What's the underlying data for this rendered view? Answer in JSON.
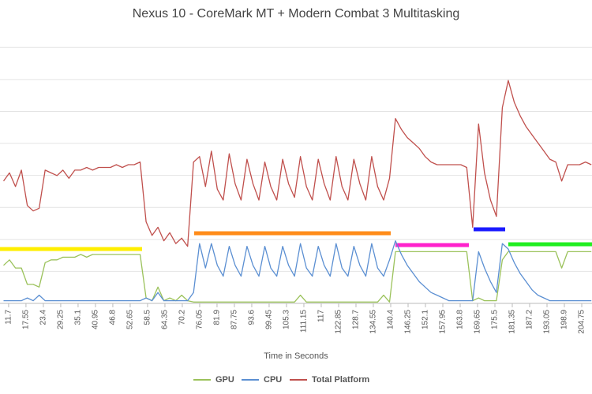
{
  "chart_data": {
    "type": "line",
    "title": "Nexus 10 - CoreMark MT + Modern Combat 3 Multitasking",
    "x_label": "Time in Seconds",
    "x": [
      10,
      12,
      14,
      16,
      18,
      20,
      22,
      24,
      26,
      28,
      30,
      32,
      34,
      36,
      38,
      40,
      42,
      44,
      46,
      48,
      50,
      52,
      54,
      56,
      58,
      60,
      62,
      64,
      66,
      68,
      70,
      72,
      74,
      76,
      78,
      80,
      82,
      84,
      86,
      88,
      90,
      92,
      94,
      96,
      98,
      100,
      102,
      104,
      106,
      108,
      110,
      112,
      114,
      116,
      118,
      120,
      122,
      124,
      126,
      128,
      130,
      132,
      134,
      136,
      138,
      140,
      142,
      144,
      146,
      148,
      150,
      152,
      154,
      156,
      158,
      160,
      162,
      164,
      166,
      168,
      170,
      172,
      174,
      176,
      178,
      180,
      182,
      184,
      186,
      188,
      190,
      192,
      194,
      196,
      198,
      200,
      202,
      204,
      206,
      208
    ],
    "xlim": [
      8.8,
      208.2
    ],
    "xticks": [
      11.7,
      17.55,
      23.4,
      29.25,
      35.1,
      40.95,
      46.8,
      52.65,
      58.5,
      64.35,
      70.2,
      76.05,
      81.9,
      87.75,
      93.6,
      99.45,
      105.3,
      111.15,
      117,
      122.85,
      128.7,
      134.55,
      140.4,
      146.25,
      152.1,
      157.95,
      163.8,
      169.65,
      175.5,
      181.35,
      187.2,
      193.05,
      198.9,
      204.75
    ],
    "ylim": [
      0,
      10
    ],
    "grid": true,
    "series": [
      {
        "name": "GPU",
        "color": "#9bc25b",
        "values": [
          1.4,
          1.6,
          1.3,
          1.3,
          0.7,
          0.7,
          0.6,
          1.5,
          1.6,
          1.6,
          1.7,
          1.7,
          1.7,
          1.8,
          1.7,
          1.8,
          1.8,
          1.8,
          1.8,
          1.8,
          1.8,
          1.8,
          1.8,
          1.8,
          0.2,
          0.1,
          0.6,
          0.1,
          0.2,
          0.1,
          0.3,
          0.1,
          0.05,
          0.05,
          0.05,
          0.05,
          0.05,
          0.05,
          0.05,
          0.05,
          0.05,
          0.05,
          0.05,
          0.05,
          0.05,
          0.05,
          0.05,
          0.05,
          0.05,
          0.05,
          0.3,
          0.05,
          0.05,
          0.05,
          0.05,
          0.05,
          0.05,
          0.05,
          0.05,
          0.05,
          0.05,
          0.05,
          0.05,
          0.05,
          0.3,
          0.05,
          1.9,
          1.9,
          1.9,
          1.9,
          1.9,
          1.9,
          1.9,
          1.9,
          1.9,
          1.9,
          1.9,
          1.9,
          1.9,
          0.1,
          0.2,
          0.1,
          0.1,
          0.1,
          1.6,
          1.9,
          1.9,
          1.9,
          1.9,
          1.9,
          1.9,
          1.9,
          1.9,
          1.9,
          1.3,
          1.9,
          1.9,
          1.9,
          1.9,
          1.9
        ]
      },
      {
        "name": "CPU",
        "color": "#5b8fd2",
        "values": [
          0.1,
          0.1,
          0.1,
          0.1,
          0.2,
          0.1,
          0.3,
          0.1,
          0.1,
          0.1,
          0.1,
          0.1,
          0.1,
          0.1,
          0.1,
          0.1,
          0.1,
          0.1,
          0.1,
          0.1,
          0.1,
          0.1,
          0.1,
          0.1,
          0.2,
          0.1,
          0.4,
          0.1,
          0.1,
          0.1,
          0.1,
          0.1,
          0.4,
          2.2,
          1.3,
          2.2,
          1.4,
          1.0,
          2.1,
          1.4,
          1.0,
          2.1,
          1.4,
          1.0,
          2.1,
          1.3,
          1.0,
          2.1,
          1.4,
          1.0,
          2.2,
          1.3,
          1.0,
          2.1,
          1.4,
          1.0,
          2.2,
          1.3,
          1.0,
          2.1,
          1.4,
          1.0,
          2.2,
          1.3,
          1.0,
          1.6,
          2.3,
          1.8,
          1.4,
          1.1,
          0.8,
          0.6,
          0.4,
          0.3,
          0.2,
          0.1,
          0.1,
          0.1,
          0.1,
          0.1,
          1.9,
          1.3,
          0.8,
          0.4,
          2.2,
          2.0,
          1.5,
          1.1,
          0.8,
          0.5,
          0.3,
          0.2,
          0.1,
          0.1,
          0.1,
          0.1,
          0.1,
          0.1,
          0.1,
          0.1
        ]
      },
      {
        "name": "Total Platform",
        "color": "#c0504d",
        "values": [
          4.5,
          4.8,
          4.3,
          4.9,
          3.6,
          3.4,
          3.5,
          4.9,
          4.8,
          4.7,
          4.9,
          4.6,
          4.9,
          4.9,
          5.0,
          4.9,
          5.0,
          5.0,
          5.0,
          5.1,
          5.0,
          5.1,
          5.1,
          5.2,
          3.0,
          2.5,
          2.8,
          2.3,
          2.6,
          2.2,
          2.4,
          2.1,
          5.2,
          5.4,
          4.3,
          5.6,
          4.2,
          3.8,
          5.5,
          4.4,
          3.8,
          5.3,
          4.4,
          3.8,
          5.2,
          4.3,
          3.8,
          5.3,
          4.4,
          3.9,
          5.4,
          4.3,
          3.8,
          5.3,
          4.4,
          3.8,
          5.4,
          4.3,
          3.8,
          5.3,
          4.4,
          3.8,
          5.4,
          4.3,
          3.8,
          4.6,
          6.8,
          6.4,
          6.1,
          5.9,
          5.7,
          5.4,
          5.2,
          5.1,
          5.1,
          5.1,
          5.1,
          5.1,
          5.0,
          2.8,
          6.6,
          4.8,
          3.8,
          3.2,
          7.2,
          8.2,
          7.4,
          6.9,
          6.5,
          6.2,
          5.9,
          5.6,
          5.3,
          5.2,
          4.5,
          5.1,
          5.1,
          5.1,
          5.2,
          5.1
        ]
      }
    ]
  }
}
